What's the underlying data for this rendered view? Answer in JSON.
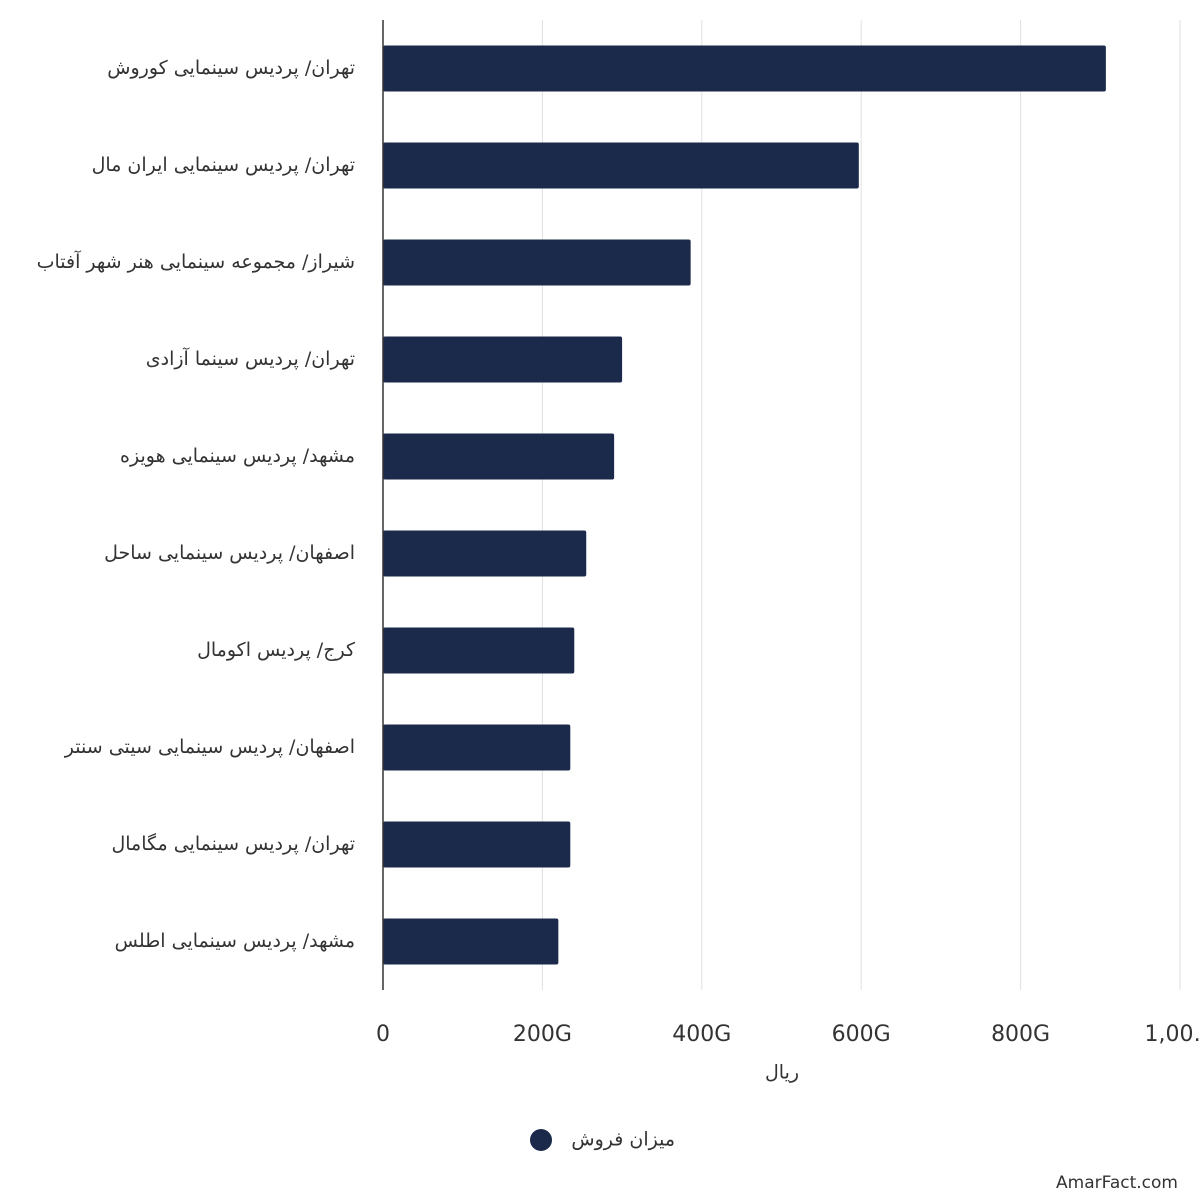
{
  "chart_data": {
    "type": "barh",
    "categories": [
      "تهران/ پردیس سینمایی کوروش",
      "تهران/ پردیس سینمایی ایران مال",
      "شیراز/ مجموعه سینمایی هنر شهر آفتاب",
      "تهران/ پردیس سینما آزادی",
      "مشهد/ پردیس سینمایی هویزه",
      "اصفهان/ پردیس سینمایی ساحل",
      "کرج/ پردیس اکومال",
      "اصفهان/ پردیس سینمایی سیتی سنتر",
      "تهران/ پردیس سینمایی مگامال",
      "مشهد/ پردیس سینمایی اطلس"
    ],
    "series": [
      {
        "name": "میزان فروش",
        "color": "#1b2a4a",
        "values": [
          907000000000,
          597000000000,
          386000000000,
          300000000000,
          290000000000,
          255000000000,
          240000000000,
          235000000000,
          235000000000,
          220000000000
        ]
      }
    ],
    "xlabel": "ریال",
    "xlim": [
      0,
      1000000000000
    ],
    "xticks": [
      0,
      {
        "value": 200000000000,
        "label": "200G"
      },
      {
        "value": 400000000000,
        "label": "400G"
      },
      {
        "value": 600000000000,
        "label": "600G"
      },
      {
        "value": 800000000000,
        "label": "800G"
      },
      {
        "value": 1000000000000,
        "label": "1,00…"
      }
    ],
    "grid": true,
    "legend": "bottom",
    "watermark": "AmarFact.com"
  }
}
